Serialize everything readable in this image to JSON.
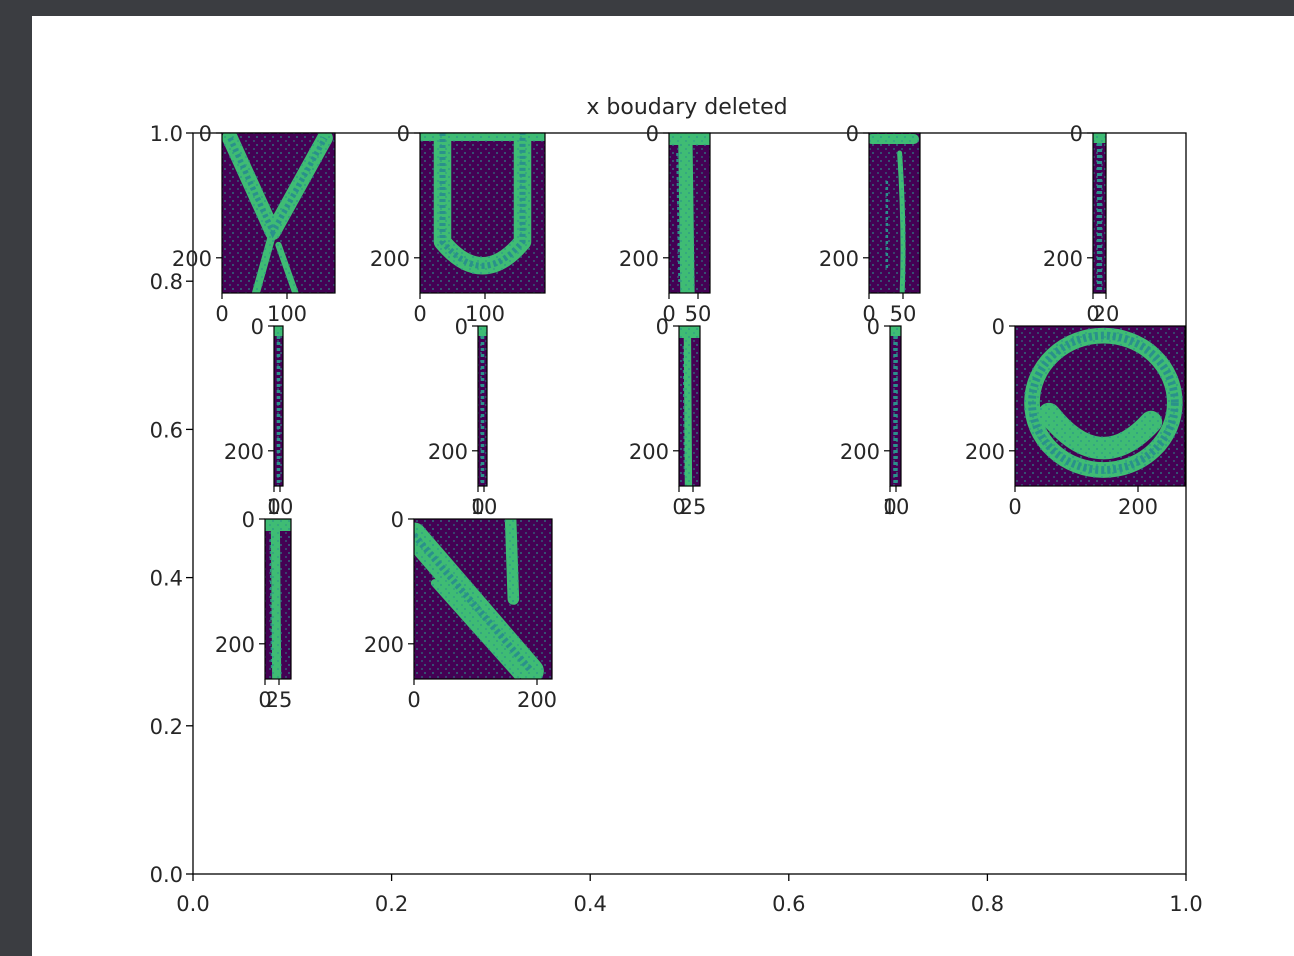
{
  "chart_data": {
    "type": "heatmap",
    "title": "x boudary deleted",
    "colors": {
      "dark": "#440154",
      "mid": "#2a918b",
      "bright": "#3fbc74",
      "frame": "#000000",
      "background": "#ffffff",
      "window": "#3b3d41"
    },
    "main_axes": {
      "xlim": [
        0,
        1
      ],
      "ylim": [
        0,
        1
      ],
      "xticks": [
        "0.0",
        "0.2",
        "0.4",
        "0.6",
        "0.8",
        "1.0"
      ],
      "yticks": [
        "0.0",
        "0.2",
        "0.4",
        "0.6",
        "0.8",
        "1.0"
      ]
    },
    "panels": [
      {
        "glyph": "V",
        "y_tick_labels": [
          "0",
          "200"
        ],
        "x_tick_labels": [
          "0",
          "100"
        ]
      },
      {
        "glyph": "U",
        "y_tick_labels": [
          "0",
          "200"
        ],
        "x_tick_labels": [
          "0",
          "100"
        ]
      },
      {
        "glyph": "I",
        "y_tick_labels": [
          "0",
          "200"
        ],
        "x_tick_labels": [
          "0",
          "50"
        ]
      },
      {
        "glyph": "7",
        "y_tick_labels": [
          "0",
          "200"
        ],
        "x_tick_labels": [
          "0",
          "50"
        ]
      },
      {
        "glyph": "bar",
        "y_tick_labels": [
          "0",
          "200"
        ],
        "x_tick_labels": [
          "0",
          "20"
        ]
      },
      {
        "glyph": "bar",
        "y_tick_labels": [
          "0",
          "200"
        ],
        "x_tick_labels": [
          "0",
          "10"
        ]
      },
      {
        "glyph": "bar",
        "y_tick_labels": [
          "0",
          "200"
        ],
        "x_tick_labels": [
          "0",
          "10"
        ]
      },
      {
        "glyph": "I",
        "y_tick_labels": [
          "0",
          "200"
        ],
        "x_tick_labels": [
          "0",
          "25"
        ]
      },
      {
        "glyph": "bar",
        "y_tick_labels": [
          "0",
          "200"
        ],
        "x_tick_labels": [
          "0",
          "10"
        ]
      },
      {
        "glyph": "O",
        "y_tick_labels": [
          "0",
          "200"
        ],
        "x_tick_labels": [
          "0",
          "200"
        ]
      },
      {
        "glyph": "I",
        "y_tick_labels": [
          "0",
          "200"
        ],
        "x_tick_labels": [
          "0",
          "25"
        ]
      },
      {
        "glyph": "N",
        "y_tick_labels": [
          "0",
          "200"
        ],
        "x_tick_labels": [
          "0",
          "200"
        ]
      }
    ]
  }
}
